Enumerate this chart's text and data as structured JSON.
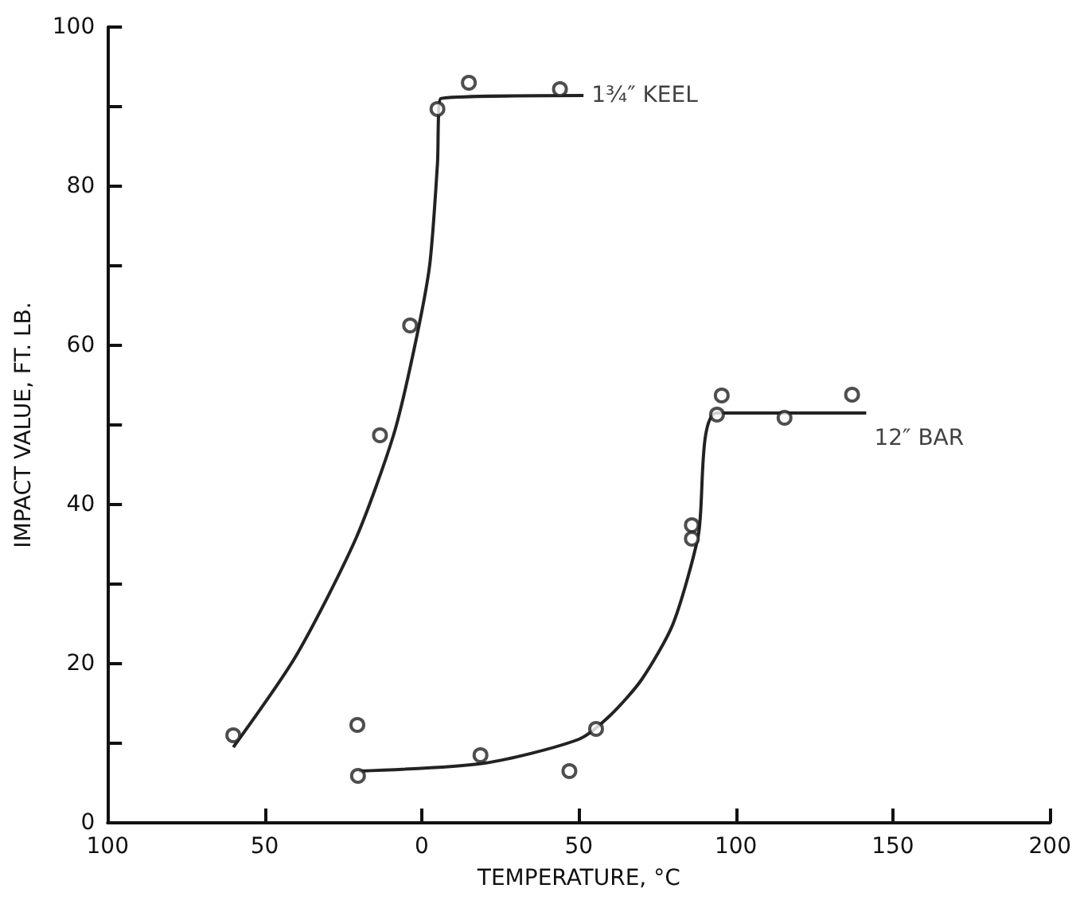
{
  "chart_data": {
    "type": "scatter",
    "xlabel": "TEMPERATURE, °C",
    "ylabel": "IMPACT VALUE, FT. LB.",
    "xlim": [
      -100,
      200
    ],
    "xticks": [
      {
        "value": -100,
        "label": "100"
      },
      {
        "value": -50,
        "label": "50"
      },
      0,
      50,
      100,
      150,
      200
    ],
    "ylim": [
      0,
      100
    ],
    "yticks": [
      0,
      {
        "value": 10,
        "label": null
      },
      20,
      {
        "value": 30,
        "label": null
      },
      40,
      {
        "value": 50,
        "label": null
      },
      60,
      {
        "value": 70,
        "label": null
      },
      80,
      {
        "value": 90,
        "label": null
      },
      100
    ],
    "grid": false,
    "marker": "circle",
    "series": [
      {
        "color": "#222222",
        "x": [
          -60,
          -13.3,
          -3.7,
          5,
          15,
          44
        ],
        "values": [
          11,
          48.7,
          62.5,
          89.7,
          93,
          92.2
        ]
      },
      {
        "color": "#222222",
        "x": [
          -20.5,
          -20.3,
          18.7,
          47,
          55.5,
          86,
          86,
          94,
          95.5,
          115.5,
          137
        ],
        "values": [
          12.3,
          5.9,
          8.5,
          6.5,
          11.8,
          37.4,
          35.7,
          51.3,
          53.7,
          50.9,
          53.8
        ]
      },
      {
        "type": "line",
        "color": "#222222",
        "marker": "none",
        "x": [
          -60,
          -40,
          -21,
          -9,
          -2.5,
          2.5,
          5,
          6,
          51.5
        ],
        "values": [
          9.5,
          21,
          35.7,
          48.7,
          59.4,
          70,
          82.8,
          91,
          91.4
        ]
      },
      {
        "type": "line",
        "color": "#222222",
        "marker": "none",
        "x": [
          -20,
          20,
          50,
          60,
          70,
          80,
          88,
          94,
          141.5
        ],
        "values": [
          6.5,
          7.5,
          10.5,
          13.5,
          18,
          25,
          36,
          51.5,
          51.5
        ]
      }
    ],
    "annotations": [
      {
        "text": "1¾″ KEEL",
        "x": 51.5,
        "y": 91.4
      },
      {
        "text": "12″ BAR",
        "x": 141.5,
        "y": 51.5
      }
    ]
  }
}
